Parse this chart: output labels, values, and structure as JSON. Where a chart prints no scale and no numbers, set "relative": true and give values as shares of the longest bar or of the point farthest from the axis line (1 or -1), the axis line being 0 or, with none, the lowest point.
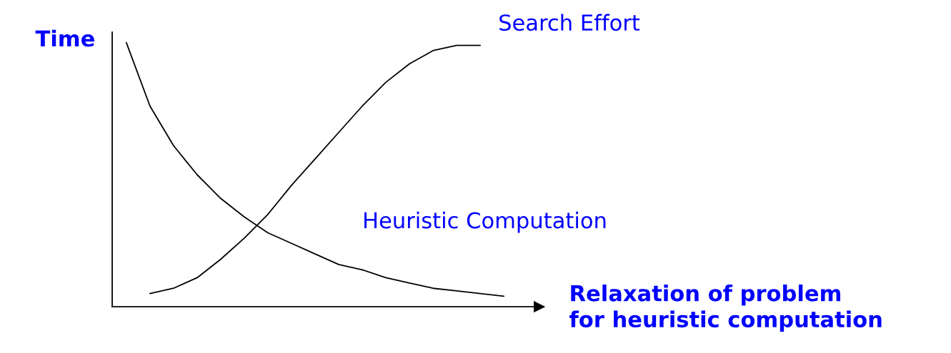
{
  "chart_data": {
    "type": "line",
    "relative": true,
    "ylabel": "Time",
    "xlabel": "Relaxation of problem\nfor heuristic computation",
    "categories": [
      null,
      null,
      null,
      null,
      null,
      null,
      null,
      null,
      null,
      null,
      null,
      null,
      null,
      null,
      null,
      null,
      null
    ],
    "series": [
      {
        "name": "Search Effort",
        "color": "#000000",
        "values": [
          null,
          0.05,
          0.07,
          0.11,
          0.18,
          0.26,
          0.35,
          0.46,
          0.56,
          0.66,
          0.76,
          0.85,
          0.92,
          0.97,
          0.99,
          0.99,
          null
        ]
      },
      {
        "name": "Heuristic Computation",
        "color": "#000000",
        "values": [
          1,
          0.76,
          0.61,
          0.5,
          0.41,
          0.34,
          0.28,
          0.24,
          0.2,
          0.16,
          0.14,
          0.11,
          0.09,
          0.07,
          0.06,
          0.05,
          0.04
        ]
      }
    ]
  }
}
